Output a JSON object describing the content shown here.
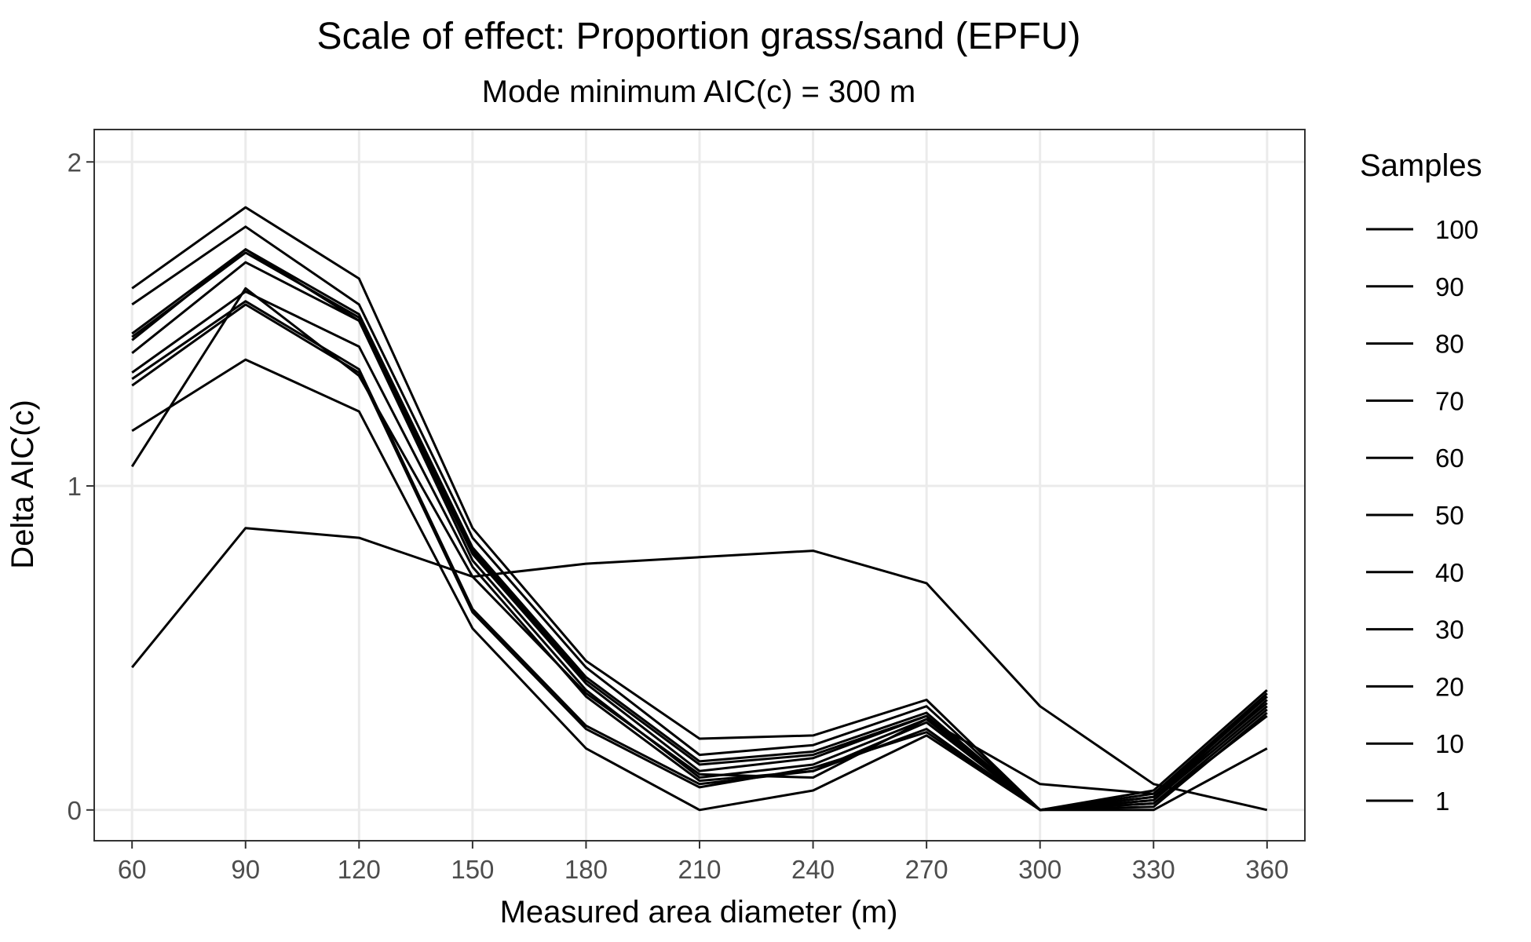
{
  "chart_data": {
    "type": "line",
    "title": "Scale of effect: Proportion grass/sand (EPFU)",
    "subtitle": "Mode minimum AIC(c) = 300 m",
    "xlabel": "Measured area diameter (m)",
    "ylabel": "Delta AIC(c)",
    "x": [
      60,
      90,
      120,
      150,
      180,
      210,
      240,
      270,
      300,
      330,
      360
    ],
    "xlim": [
      50,
      370
    ],
    "ylim": [
      -0.095,
      2.1
    ],
    "x_ticks": [
      "60",
      "90",
      "120",
      "150",
      "180",
      "210",
      "240",
      "270",
      "300",
      "330",
      "360"
    ],
    "y_ticks": [
      {
        "value": 0,
        "label": "0"
      },
      {
        "value": 1,
        "label": "1"
      },
      {
        "value": 2,
        "label": "2"
      }
    ],
    "grid": true,
    "legend": {
      "title": "Samples",
      "position": "right",
      "entries": [
        "100",
        "90",
        "80",
        "70",
        "60",
        "50",
        "40",
        "30",
        "20",
        "10",
        "1"
      ]
    },
    "line_color": "#000000",
    "series": [
      {
        "values": [
          1.61,
          1.86,
          1.64,
          0.87,
          0.46,
          0.22,
          0.23,
          0.34,
          0.0,
          0.06,
          0.37
        ]
      },
      {
        "values": [
          1.56,
          1.8,
          1.56,
          0.84,
          0.44,
          0.17,
          0.2,
          0.32,
          0.0,
          0.05,
          0.36
        ]
      },
      {
        "values": [
          1.47,
          1.73,
          1.53,
          0.81,
          0.41,
          0.15,
          0.18,
          0.3,
          0.0,
          0.04,
          0.35
        ]
      },
      {
        "values": [
          1.46,
          1.72,
          1.52,
          0.8,
          0.4,
          0.14,
          0.17,
          0.29,
          0.0,
          0.03,
          0.34
        ]
      },
      {
        "values": [
          1.45,
          1.73,
          1.51,
          0.79,
          0.39,
          0.12,
          0.16,
          0.29,
          0.0,
          0.04,
          0.33
        ]
      },
      {
        "values": [
          1.41,
          1.69,
          1.51,
          0.77,
          0.37,
          0.1,
          0.14,
          0.28,
          0.0,
          0.03,
          0.32
        ]
      },
      {
        "values": [
          1.35,
          1.6,
          1.43,
          0.75,
          0.35,
          0.09,
          0.12,
          0.27,
          0.0,
          0.02,
          0.31
        ]
      },
      {
        "values": [
          1.33,
          1.57,
          1.36,
          0.62,
          0.26,
          0.08,
          0.12,
          0.25,
          0.0,
          0.01,
          0.3
        ]
      },
      {
        "values": [
          1.31,
          1.56,
          1.35,
          0.61,
          0.25,
          0.07,
          0.13,
          0.24,
          0.0,
          0.02,
          0.29
        ]
      },
      {
        "values": [
          1.17,
          1.39,
          1.23,
          0.56,
          0.19,
          0.0,
          0.06,
          0.23,
          0.0,
          0.0,
          0.19
        ]
      },
      {
        "values": [
          1.06,
          1.61,
          1.34,
          0.72,
          0.36,
          0.11,
          0.1,
          0.28,
          0.08,
          0.05,
          0.35
        ]
      },
      {
        "values": [
          0.44,
          0.87,
          0.84,
          0.72,
          0.76,
          0.78,
          0.8,
          0.7,
          0.32,
          0.08,
          0.0
        ]
      }
    ]
  }
}
